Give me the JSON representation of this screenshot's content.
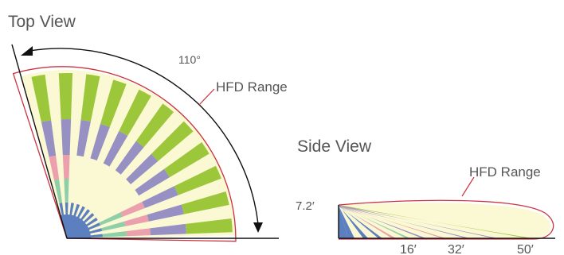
{
  "top_view": {
    "title": "Top View",
    "angle_label": "110°",
    "range_label": "HFD Range"
  },
  "side_view": {
    "title": "Side View",
    "range_label": "HFD Range",
    "height_label": "7.2′",
    "distance_labels": [
      "16′",
      "32′",
      "50′"
    ]
  },
  "colors": {
    "far_zone": "#9dc73b",
    "middle_zone": "#9790c3",
    "near_zone": "#ec9fad",
    "close_zone": "#8fcfa7",
    "innermost_zone": "#5b7fbf",
    "background_zone": "#fbf8d4",
    "range_outline": "#cc3340",
    "line": "#111111"
  }
}
